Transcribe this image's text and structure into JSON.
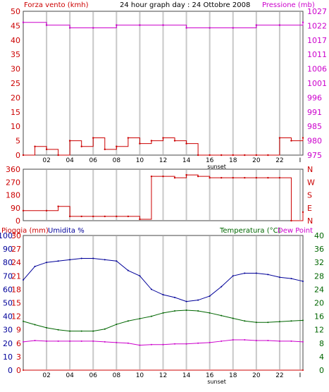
{
  "header": {
    "left_title": "Forza vento (kmh)",
    "center_title": "24 hour graph day : 24 Ottobre 2008",
    "right_title": "Pressione (mb)"
  },
  "lower_header": {
    "rain_label": "Pioggia (mm)",
    "humidity_label": "Umidita %",
    "temp_label": "Temperatura (°C)",
    "dew_label": "Dew Point"
  },
  "x_axis": {
    "ticks": [
      "02",
      "04",
      "06",
      "08",
      "10",
      "12",
      "14",
      "16",
      "18",
      "20",
      "22",
      "I"
    ],
    "sunset_label": "sunset"
  },
  "colors": {
    "wind_gust": "#cc0000",
    "wind_avg": "#000099",
    "pressure": "#cc00cc",
    "direction": "#cc0000",
    "humidity": "#000099",
    "temperature": "#006600",
    "dew": "#cc00cc",
    "rain": "#cc0000",
    "grid": "#c8c8c8"
  },
  "chart_data": [
    {
      "type": "line",
      "title": "24 hour graph day : 24 Ottobre 2008",
      "ylabel": "Forza vento (kmh)",
      "y2label": "Pressione (mb)",
      "x_ticks": [
        "02",
        "04",
        "06",
        "08",
        "10",
        "12",
        "14",
        "16",
        "18",
        "20",
        "22",
        "I"
      ],
      "ylim": [
        0,
        50
      ],
      "y_ticks": [
        0,
        5,
        10,
        15,
        20,
        25,
        30,
        35,
        40,
        45,
        50
      ],
      "y2lim": [
        975,
        1027
      ],
      "y2_ticks": [
        975,
        980,
        985,
        991,
        996,
        1001,
        1006,
        1011,
        1017,
        1022,
        1027
      ],
      "series": [
        {
          "name": "Forza vento (kmh)",
          "axis": "left",
          "x": [
            0,
            1,
            2,
            3,
            4,
            5,
            6,
            7,
            8,
            9,
            10,
            11,
            12,
            13,
            14,
            15,
            16,
            17,
            18,
            19,
            20,
            21,
            22,
            23,
            24
          ],
          "values": [
            0,
            3,
            2,
            0,
            5,
            3,
            6,
            2,
            3,
            6,
            4,
            5,
            6,
            5,
            4,
            0,
            0,
            0,
            0,
            0,
            0,
            0,
            6,
            5,
            6
          ]
        },
        {
          "name": "Pressione (mb)",
          "axis": "right",
          "x": [
            0,
            2,
            4,
            6,
            8,
            10,
            12,
            14,
            16,
            18,
            20,
            22,
            24
          ],
          "values": [
            1023,
            1022,
            1021,
            1021,
            1022,
            1022,
            1022,
            1021,
            1021,
            1021,
            1022,
            1022,
            1023
          ]
        }
      ]
    },
    {
      "type": "line",
      "ylim": [
        0,
        360
      ],
      "y_ticks": [
        0,
        90,
        180,
        270,
        360
      ],
      "y2_ticks": [
        "N",
        "E",
        "S",
        "W",
        "N"
      ],
      "series": [
        {
          "x": [
            0,
            2,
            3,
            4,
            5,
            6,
            7,
            8,
            9,
            10,
            11,
            12,
            13,
            14,
            15,
            16,
            17,
            18,
            19,
            20,
            21,
            22,
            23,
            24
          ],
          "values": [
            70,
            70,
            100,
            30,
            30,
            30,
            30,
            30,
            30,
            10,
            310,
            310,
            300,
            320,
            310,
            300,
            300,
            300,
            300,
            300,
            300,
            300,
            0,
            60
          ]
        }
      ]
    },
    {
      "type": "line",
      "ylabel": "Pioggia (mm)",
      "y2label": "Temperatura (°C)",
      "ylim": [
        0,
        100
      ],
      "y_ticks": [
        0,
        10,
        20,
        30,
        40,
        50,
        60,
        70,
        80,
        90,
        100
      ],
      "y_ticks_secondary": [
        0,
        3,
        6,
        9,
        12,
        15,
        18,
        21,
        24,
        27,
        30
      ],
      "y2lim": [
        0,
        40
      ],
      "y2_ticks": [
        0,
        4,
        8,
        12,
        16,
        20,
        24,
        28,
        32,
        36,
        40
      ],
      "series": [
        {
          "name": "Umidita %",
          "axis": "left",
          "x": [
            0,
            1,
            2,
            3,
            4,
            5,
            6,
            7,
            8,
            9,
            10,
            11,
            12,
            13,
            14,
            15,
            16,
            17,
            18,
            19,
            20,
            21,
            22,
            23,
            24
          ],
          "values": [
            67,
            77,
            80,
            81,
            82,
            83,
            83,
            82,
            81,
            74,
            70,
            60,
            56,
            54,
            51,
            52,
            55,
            62,
            70,
            72,
            72,
            71,
            69,
            68,
            66
          ]
        },
        {
          "name": "Temperatura (°C)",
          "axis": "right",
          "x": [
            0,
            1,
            2,
            3,
            4,
            5,
            6,
            7,
            8,
            9,
            10,
            11,
            12,
            13,
            14,
            15,
            16,
            17,
            18,
            19,
            20,
            21,
            22,
            23,
            24
          ],
          "values": [
            14.5,
            13.5,
            12.6,
            12,
            11.6,
            11.6,
            11.6,
            12.2,
            13.6,
            14.6,
            15.3,
            16,
            17,
            17.6,
            17.8,
            17.6,
            17,
            16.2,
            15.4,
            14.6,
            14.2,
            14.2,
            14.4,
            14.6,
            14.8
          ]
        },
        {
          "name": "Dew Point",
          "axis": "right",
          "x": [
            0,
            1,
            2,
            3,
            4,
            5,
            6,
            7,
            8,
            9,
            10,
            11,
            12,
            13,
            14,
            15,
            16,
            17,
            18,
            19,
            20,
            21,
            22,
            23,
            24
          ],
          "values": [
            8.4,
            8.8,
            8.6,
            8.6,
            8.6,
            8.6,
            8.6,
            8.4,
            8.2,
            8,
            7.4,
            7.6,
            7.6,
            7.8,
            7.8,
            8,
            8.2,
            8.6,
            9,
            9,
            8.8,
            8.8,
            8.6,
            8.6,
            8.4
          ]
        },
        {
          "name": "Pioggia (mm)",
          "axis": "left",
          "x": [
            0,
            24
          ],
          "values": [
            0,
            0
          ]
        }
      ]
    }
  ]
}
